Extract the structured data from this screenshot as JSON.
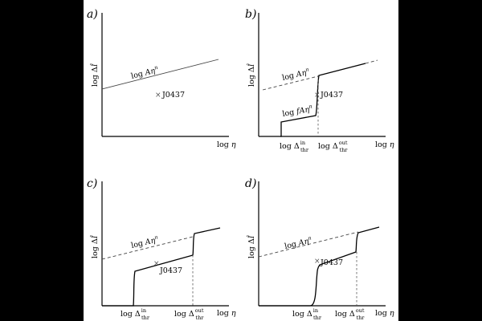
{
  "panels": {
    "a": {
      "letter": "a)"
    },
    "b": {
      "letter": "b)"
    },
    "c": {
      "letter": "c)"
    },
    "d": {
      "letter": "d)"
    }
  },
  "labels": {
    "log": "log",
    "delta": "Δ",
    "i_hat": "Î",
    "n": "n",
    "eta": "η",
    "A": "A",
    "f": "f",
    "in": "in",
    "out": "out",
    "thr": "thr",
    "source": "J0437",
    "star_marker": "×"
  },
  "colors": {
    "background": "#000000",
    "figure": "#ffffff",
    "line": "#000000",
    "guide": "#444444"
  }
}
